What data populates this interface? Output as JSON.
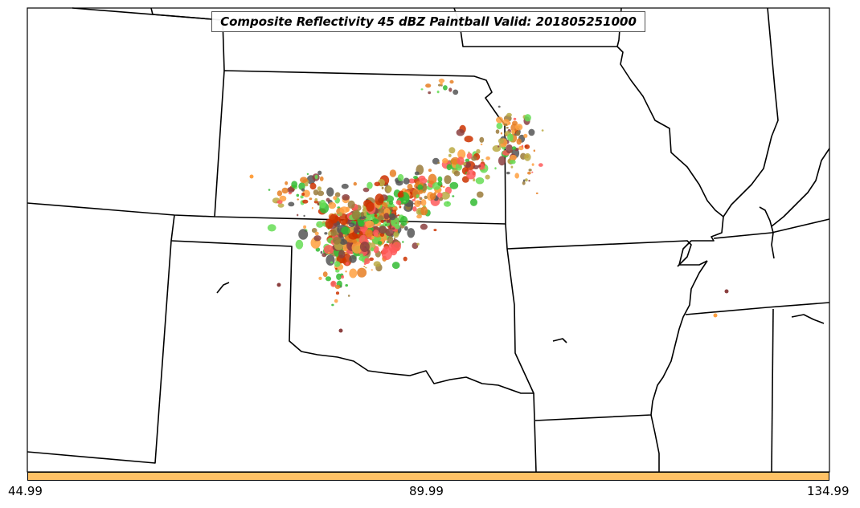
{
  "map": {
    "title": "Composite Reflectivity 45 dBZ Paintball Valid: 201805251000"
  },
  "colorbar": {
    "color": "#ffc266",
    "ticks": [
      "44.99",
      "89.99",
      "134.99"
    ]
  },
  "colors": {
    "border": "#000000",
    "paint": [
      "#ff5a5a",
      "#ffa040",
      "#33bb33",
      "#66dd55",
      "#8b4040",
      "#555555",
      "#bbaa44",
      "#e67e22",
      "#cc3300",
      "#9a7a3a"
    ]
  }
}
